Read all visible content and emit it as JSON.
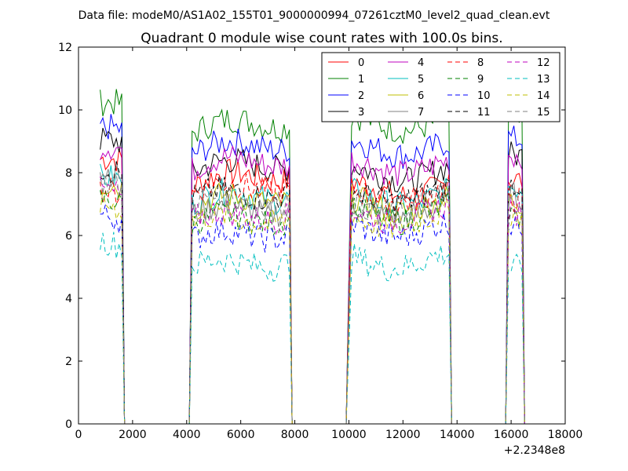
{
  "figure": {
    "suptitle": "Data file: modeM0/AS1A02_155T01_9000000994_07261cztM0_level2_quad_clean.evt",
    "offset_label": "+2.2348e8"
  },
  "chart_data": {
    "type": "line",
    "title": "Quadrant 0 module wise count rates with 100.0s bins.",
    "xlabel": "",
    "ylabel": "",
    "xlim": [
      0,
      18000
    ],
    "ylim": [
      0,
      12
    ],
    "x_offset": 223480000,
    "xticks": [
      0,
      2000,
      4000,
      6000,
      8000,
      10000,
      12000,
      14000,
      16000,
      18000
    ],
    "xtick_labels": [
      "0",
      "2000",
      "4000",
      "6000",
      "8000",
      "10000",
      "12000",
      "14000",
      "16000",
      "18000"
    ],
    "yticks": [
      0,
      2,
      4,
      6,
      8,
      10,
      12
    ],
    "ytick_labels": [
      "0",
      "2",
      "4",
      "6",
      "8",
      "10",
      "12"
    ],
    "grid": false,
    "legend": {
      "location": "top-right",
      "columns": 4
    },
    "good_time_intervals": [
      [
        800,
        1600
      ],
      [
        4200,
        7800
      ],
      [
        10100,
        13700
      ],
      [
        15900,
        16400
      ]
    ],
    "gap_value": 0,
    "series": [
      {
        "name": "0",
        "color": "#ff0000",
        "dash": "solid",
        "mean_levels": [
          8.2,
          7.6,
          7.5,
          8.0
        ]
      },
      {
        "name": "1",
        "color": "#008000",
        "dash": "solid",
        "mean_levels": [
          10.0,
          9.3,
          9.6,
          9.8
        ]
      },
      {
        "name": "2",
        "color": "#0000ff",
        "dash": "solid",
        "mean_levels": [
          9.2,
          8.6,
          8.8,
          9.3
        ]
      },
      {
        "name": "3",
        "color": "#000000",
        "dash": "solid",
        "mean_levels": [
          8.8,
          8.0,
          8.0,
          8.8
        ]
      },
      {
        "name": "4",
        "color": "#bf00bf",
        "dash": "solid",
        "mean_levels": [
          8.6,
          8.1,
          8.2,
          8.8
        ]
      },
      {
        "name": "5",
        "color": "#00bfbf",
        "dash": "solid",
        "mean_levels": [
          7.6,
          7.0,
          7.2,
          7.8
        ]
      },
      {
        "name": "6",
        "color": "#bfbf00",
        "dash": "solid",
        "mean_levels": [
          7.4,
          6.9,
          7.0,
          7.3
        ]
      },
      {
        "name": "7",
        "color": "#808080",
        "dash": "solid",
        "mean_levels": [
          7.8,
          6.6,
          6.8,
          7.5
        ]
      },
      {
        "name": "8",
        "color": "#ff0000",
        "dash": "dashed",
        "mean_levels": [
          7.2,
          7.3,
          7.3,
          7.4
        ]
      },
      {
        "name": "9",
        "color": "#008000",
        "dash": "dashed",
        "mean_levels": [
          6.9,
          6.3,
          6.7,
          6.9
        ]
      },
      {
        "name": "10",
        "color": "#0000ff",
        "dash": "dashed",
        "mean_levels": [
          6.4,
          5.8,
          6.2,
          6.6
        ]
      },
      {
        "name": "11",
        "color": "#000000",
        "dash": "dashed",
        "mean_levels": [
          7.9,
          7.1,
          7.3,
          7.9
        ]
      },
      {
        "name": "12",
        "color": "#bf00bf",
        "dash": "dashed",
        "mean_levels": [
          7.2,
          6.4,
          6.7,
          7.0
        ]
      },
      {
        "name": "13",
        "color": "#00bfbf",
        "dash": "dashed",
        "mean_levels": [
          5.6,
          4.9,
          5.2,
          5.2
        ]
      },
      {
        "name": "14",
        "color": "#bfbf00",
        "dash": "dashed",
        "mean_levels": [
          6.8,
          6.3,
          6.5,
          6.9
        ]
      },
      {
        "name": "15",
        "color": "#808080",
        "dash": "dashed",
        "mean_levels": [
          7.5,
          6.9,
          7.0,
          7.4
        ]
      }
    ]
  }
}
